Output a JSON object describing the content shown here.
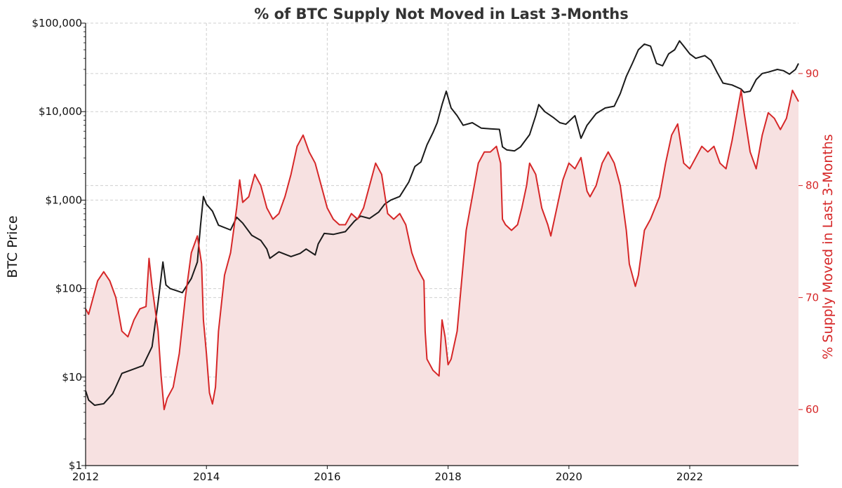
{
  "chart_data": {
    "type": "line",
    "title": "% of BTC Supply Not Moved in Last 3-Months",
    "xlabel": "",
    "ylabel": "BTC Price",
    "ylabel_right": "% Supply Moved in Last 3-Months",
    "x_ticks": [
      "2012",
      "2014",
      "2016",
      "2018",
      "2020",
      "2022"
    ],
    "xlim": [
      2012.0,
      2023.8
    ],
    "y_left_scale": "log",
    "ylim_left": [
      1,
      100000
    ],
    "y_left_ticks": [
      {
        "value": 1,
        "label": "$1"
      },
      {
        "value": 10,
        "label": "$10"
      },
      {
        "value": 100,
        "label": "$100"
      },
      {
        "value": 1000,
        "label": "$1,000"
      },
      {
        "value": 10000,
        "label": "$10,000"
      },
      {
        "value": 100000,
        "label": "$100,000"
      }
    ],
    "ylim_right": [
      55,
      94.5
    ],
    "y_right_ticks": [
      {
        "value": 60,
        "label": "60"
      },
      {
        "value": 70,
        "label": "70"
      },
      {
        "value": 80,
        "label": "80"
      },
      {
        "value": 90,
        "label": "90"
      }
    ],
    "grid": true,
    "legend": "none",
    "colors": {
      "price": "#1a1a1a",
      "supply": "#d62728",
      "supply_fill": "#f7e1e1",
      "grid": "#cfcfcf"
    },
    "series": [
      {
        "axis": "left",
        "points": [
          [
            2012.0,
            7
          ],
          [
            2012.05,
            5.5
          ],
          [
            2012.15,
            4.8
          ],
          [
            2012.3,
            5
          ],
          [
            2012.45,
            6.5
          ],
          [
            2012.6,
            11
          ],
          [
            2012.75,
            12
          ],
          [
            2012.95,
            13.5
          ],
          [
            2013.1,
            22
          ],
          [
            2013.2,
            70
          ],
          [
            2013.28,
            200
          ],
          [
            2013.33,
            110
          ],
          [
            2013.4,
            100
          ],
          [
            2013.5,
            95
          ],
          [
            2013.6,
            90
          ],
          [
            2013.75,
            130
          ],
          [
            2013.85,
            200
          ],
          [
            2013.9,
            500
          ],
          [
            2013.95,
            1100
          ],
          [
            2014.0,
            900
          ],
          [
            2014.1,
            750
          ],
          [
            2014.2,
            520
          ],
          [
            2014.4,
            460
          ],
          [
            2014.5,
            640
          ],
          [
            2014.6,
            550
          ],
          [
            2014.75,
            400
          ],
          [
            2014.9,
            350
          ],
          [
            2015.0,
            280
          ],
          [
            2015.05,
            220
          ],
          [
            2015.2,
            260
          ],
          [
            2015.4,
            230
          ],
          [
            2015.55,
            250
          ],
          [
            2015.65,
            280
          ],
          [
            2015.8,
            240
          ],
          [
            2015.85,
            320
          ],
          [
            2015.95,
            420
          ],
          [
            2016.1,
            410
          ],
          [
            2016.3,
            440
          ],
          [
            2016.45,
            580
          ],
          [
            2016.55,
            660
          ],
          [
            2016.7,
            620
          ],
          [
            2016.85,
            730
          ],
          [
            2016.95,
            900
          ],
          [
            2017.05,
            1000
          ],
          [
            2017.2,
            1100
          ],
          [
            2017.35,
            1600
          ],
          [
            2017.45,
            2400
          ],
          [
            2017.55,
            2700
          ],
          [
            2017.65,
            4200
          ],
          [
            2017.75,
            5800
          ],
          [
            2017.82,
            7500
          ],
          [
            2017.9,
            12000
          ],
          [
            2017.97,
            17000
          ],
          [
            2018.05,
            11000
          ],
          [
            2018.15,
            9000
          ],
          [
            2018.25,
            7000
          ],
          [
            2018.4,
            7500
          ],
          [
            2018.55,
            6500
          ],
          [
            2018.7,
            6400
          ],
          [
            2018.85,
            6300
          ],
          [
            2018.9,
            4000
          ],
          [
            2018.97,
            3700
          ],
          [
            2019.1,
            3600
          ],
          [
            2019.2,
            4000
          ],
          [
            2019.35,
            5500
          ],
          [
            2019.45,
            9000
          ],
          [
            2019.5,
            12000
          ],
          [
            2019.6,
            10000
          ],
          [
            2019.75,
            8500
          ],
          [
            2019.85,
            7500
          ],
          [
            2019.95,
            7200
          ],
          [
            2020.1,
            9000
          ],
          [
            2020.2,
            5000
          ],
          [
            2020.3,
            7000
          ],
          [
            2020.45,
            9500
          ],
          [
            2020.6,
            11000
          ],
          [
            2020.75,
            11500
          ],
          [
            2020.85,
            16000
          ],
          [
            2020.95,
            25000
          ],
          [
            2021.05,
            35000
          ],
          [
            2021.15,
            50000
          ],
          [
            2021.25,
            58000
          ],
          [
            2021.35,
            55000
          ],
          [
            2021.45,
            35000
          ],
          [
            2021.55,
            33000
          ],
          [
            2021.65,
            45000
          ],
          [
            2021.75,
            50000
          ],
          [
            2021.83,
            63000
          ],
          [
            2021.9,
            55000
          ],
          [
            2022.0,
            45000
          ],
          [
            2022.1,
            40000
          ],
          [
            2022.25,
            43000
          ],
          [
            2022.35,
            38000
          ],
          [
            2022.45,
            28000
          ],
          [
            2022.55,
            21000
          ],
          [
            2022.7,
            20000
          ],
          [
            2022.85,
            18000
          ],
          [
            2022.9,
            16500
          ],
          [
            2023.0,
            17000
          ],
          [
            2023.1,
            23000
          ],
          [
            2023.2,
            27000
          ],
          [
            2023.3,
            28000
          ],
          [
            2023.45,
            30000
          ],
          [
            2023.55,
            29000
          ],
          [
            2023.65,
            26500
          ],
          [
            2023.75,
            30000
          ],
          [
            2023.8,
            35000
          ]
        ]
      },
      {
        "axis": "right",
        "points": [
          [
            2012.0,
            69
          ],
          [
            2012.05,
            68.5
          ],
          [
            2012.1,
            69.5
          ],
          [
            2012.2,
            71.5
          ],
          [
            2012.3,
            72.3
          ],
          [
            2012.4,
            71.5
          ],
          [
            2012.5,
            70
          ],
          [
            2012.6,
            67
          ],
          [
            2012.7,
            66.5
          ],
          [
            2012.8,
            68
          ],
          [
            2012.9,
            69
          ],
          [
            2013.0,
            69.2
          ],
          [
            2013.05,
            73.5
          ],
          [
            2013.1,
            71
          ],
          [
            2013.2,
            67
          ],
          [
            2013.25,
            63
          ],
          [
            2013.3,
            60
          ],
          [
            2013.35,
            61
          ],
          [
            2013.45,
            62
          ],
          [
            2013.55,
            65
          ],
          [
            2013.65,
            70
          ],
          [
            2013.75,
            74
          ],
          [
            2013.85,
            75.5
          ],
          [
            2013.92,
            73
          ],
          [
            2013.95,
            68
          ],
          [
            2014.0,
            65
          ],
          [
            2014.05,
            61.5
          ],
          [
            2014.1,
            60.5
          ],
          [
            2014.15,
            62
          ],
          [
            2014.2,
            67
          ],
          [
            2014.3,
            72
          ],
          [
            2014.4,
            74
          ],
          [
            2014.5,
            78
          ],
          [
            2014.55,
            80.5
          ],
          [
            2014.6,
            78.5
          ],
          [
            2014.7,
            79
          ],
          [
            2014.8,
            81
          ],
          [
            2014.9,
            80
          ],
          [
            2015.0,
            78
          ],
          [
            2015.1,
            77
          ],
          [
            2015.2,
            77.5
          ],
          [
            2015.3,
            79
          ],
          [
            2015.4,
            81
          ],
          [
            2015.5,
            83.5
          ],
          [
            2015.6,
            84.5
          ],
          [
            2015.7,
            83
          ],
          [
            2015.8,
            82
          ],
          [
            2015.9,
            80
          ],
          [
            2016.0,
            78
          ],
          [
            2016.1,
            77
          ],
          [
            2016.2,
            76.5
          ],
          [
            2016.3,
            76.5
          ],
          [
            2016.4,
            77.5
          ],
          [
            2016.5,
            77
          ],
          [
            2016.6,
            78
          ],
          [
            2016.7,
            80
          ],
          [
            2016.8,
            82
          ],
          [
            2016.9,
            81
          ],
          [
            2017.0,
            77.5
          ],
          [
            2017.1,
            77
          ],
          [
            2017.2,
            77.5
          ],
          [
            2017.3,
            76.5
          ],
          [
            2017.4,
            74
          ],
          [
            2017.5,
            72.5
          ],
          [
            2017.6,
            71.5
          ],
          [
            2017.62,
            67
          ],
          [
            2017.65,
            64.5
          ],
          [
            2017.75,
            63.5
          ],
          [
            2017.85,
            63
          ],
          [
            2017.9,
            68
          ],
          [
            2017.95,
            66.5
          ],
          [
            2018.0,
            64
          ],
          [
            2018.05,
            64.5
          ],
          [
            2018.15,
            67
          ],
          [
            2018.2,
            70
          ],
          [
            2018.3,
            76
          ],
          [
            2018.4,
            79
          ],
          [
            2018.5,
            82
          ],
          [
            2018.6,
            83
          ],
          [
            2018.7,
            83
          ],
          [
            2018.8,
            83.5
          ],
          [
            2018.87,
            82
          ],
          [
            2018.9,
            77
          ],
          [
            2018.95,
            76.5
          ],
          [
            2019.05,
            76
          ],
          [
            2019.15,
            76.5
          ],
          [
            2019.22,
            78
          ],
          [
            2019.3,
            80
          ],
          [
            2019.35,
            82
          ],
          [
            2019.45,
            81
          ],
          [
            2019.55,
            78
          ],
          [
            2019.65,
            76.5
          ],
          [
            2019.7,
            75.5
          ],
          [
            2019.8,
            78
          ],
          [
            2019.9,
            80.5
          ],
          [
            2020.0,
            82
          ],
          [
            2020.1,
            81.5
          ],
          [
            2020.2,
            82.5
          ],
          [
            2020.3,
            79.5
          ],
          [
            2020.35,
            79
          ],
          [
            2020.45,
            80
          ],
          [
            2020.55,
            82
          ],
          [
            2020.65,
            83
          ],
          [
            2020.75,
            82
          ],
          [
            2020.85,
            80
          ],
          [
            2020.95,
            76
          ],
          [
            2021.0,
            73
          ],
          [
            2021.1,
            71
          ],
          [
            2021.15,
            72
          ],
          [
            2021.25,
            76
          ],
          [
            2021.35,
            77
          ],
          [
            2021.5,
            79
          ],
          [
            2021.6,
            82
          ],
          [
            2021.7,
            84.5
          ],
          [
            2021.8,
            85.5
          ],
          [
            2021.9,
            82
          ],
          [
            2022.0,
            81.5
          ],
          [
            2022.1,
            82.5
          ],
          [
            2022.2,
            83.5
          ],
          [
            2022.3,
            83
          ],
          [
            2022.4,
            83.5
          ],
          [
            2022.5,
            82
          ],
          [
            2022.6,
            81.5
          ],
          [
            2022.7,
            84
          ],
          [
            2022.8,
            87
          ],
          [
            2022.85,
            88.5
          ],
          [
            2022.9,
            86.5
          ],
          [
            2023.0,
            83
          ],
          [
            2023.1,
            81.5
          ],
          [
            2023.2,
            84.5
          ],
          [
            2023.3,
            86.5
          ],
          [
            2023.4,
            86
          ],
          [
            2023.5,
            85
          ],
          [
            2023.6,
            86
          ],
          [
            2023.7,
            88.5
          ],
          [
            2023.75,
            88
          ],
          [
            2023.8,
            87.5
          ]
        ]
      }
    ]
  }
}
